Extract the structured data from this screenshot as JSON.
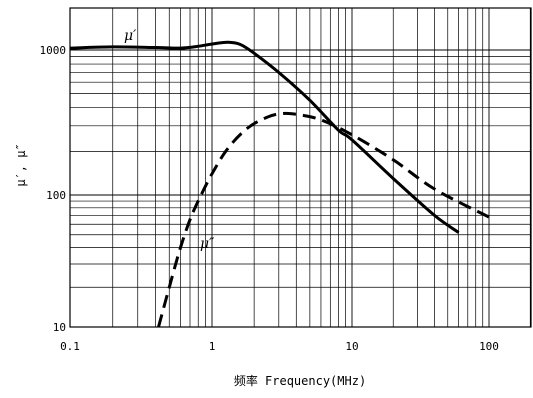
{
  "chart_data": {
    "type": "line",
    "xscale": "log",
    "yscale": "log",
    "xlim": [
      0.1,
      100
    ],
    "ylim": [
      10,
      2000
    ],
    "grid": true,
    "xlabel": "频率 Frequency(MHz)",
    "ylabel": "μ′, μ″",
    "x_ticks": [
      "0.1",
      "1",
      "10",
      "100"
    ],
    "x_tick_values": [
      0.1,
      1,
      10,
      100
    ],
    "y_ticks": [
      "10",
      "100",
      "1000"
    ],
    "y_tick_values": [
      10,
      100,
      1000
    ],
    "series": [
      {
        "name": "μ′",
        "style": "solid",
        "color": "#000000",
        "points": [
          [
            0.1,
            1030
          ],
          [
            0.2,
            1050
          ],
          [
            0.4,
            1040
          ],
          [
            0.6,
            1030
          ],
          [
            0.8,
            1060
          ],
          [
            1.0,
            1100
          ],
          [
            1.3,
            1130
          ],
          [
            1.6,
            1090
          ],
          [
            2.0,
            950
          ],
          [
            3.0,
            700
          ],
          [
            5.0,
            450
          ],
          [
            8.0,
            280
          ],
          [
            10.0,
            240
          ],
          [
            20.0,
            130
          ],
          [
            40.0,
            70
          ],
          [
            60.0,
            52
          ]
        ]
      },
      {
        "name": "μ″",
        "style": "dashed",
        "color": "#000000",
        "points": [
          [
            0.42,
            10
          ],
          [
            0.5,
            20
          ],
          [
            0.6,
            40
          ],
          [
            0.7,
            65
          ],
          [
            0.8,
            90
          ],
          [
            1.0,
            140
          ],
          [
            1.3,
            210
          ],
          [
            1.8,
            290
          ],
          [
            2.5,
            345
          ],
          [
            3.2,
            365
          ],
          [
            4.0,
            360
          ],
          [
            6.0,
            330
          ],
          [
            10.0,
            260
          ],
          [
            20.0,
            175
          ],
          [
            40.0,
            110
          ],
          [
            100.0,
            68
          ]
        ]
      }
    ]
  }
}
